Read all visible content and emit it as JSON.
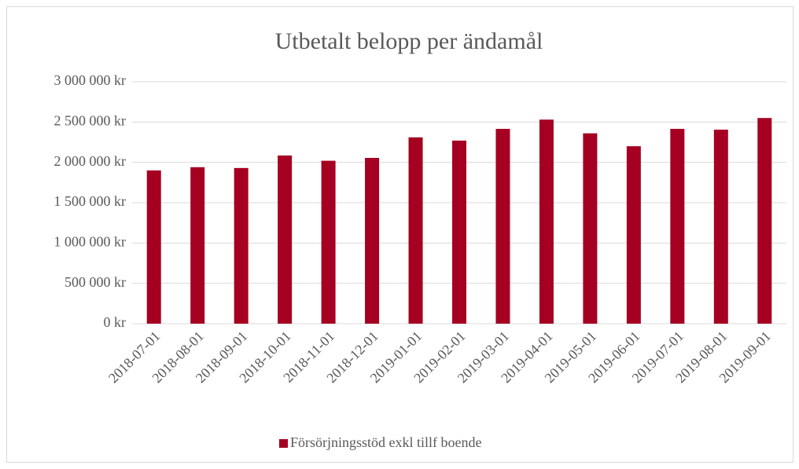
{
  "chart_data": {
    "type": "bar",
    "title": "Utbetalt belopp per ändamål",
    "categories": [
      "2018-07-01",
      "2018-08-01",
      "2018-09-01",
      "2018-10-01",
      "2018-11-01",
      "2018-12-01",
      "2019-01-01",
      "2019-02-01",
      "2019-03-01",
      "2019-04-01",
      "2019-05-01",
      "2019-06-01",
      "2019-07-01",
      "2019-08-01",
      "2019-09-01"
    ],
    "series": [
      {
        "name": "Försörjningsstöd exkl tillf boende",
        "color": "#a50021",
        "values": [
          1900000,
          1940000,
          1930000,
          2085000,
          2020000,
          2055000,
          2310000,
          2270000,
          2415000,
          2530000,
          2360000,
          2200000,
          2415000,
          2405000,
          2550000
        ]
      }
    ],
    "ylim": [
      0,
      3000000
    ],
    "yticks": [
      {
        "value": 0,
        "label": "0 kr"
      },
      {
        "value": 500000,
        "label": "500 000 kr"
      },
      {
        "value": 1000000,
        "label": "1 000 000 kr"
      },
      {
        "value": 1500000,
        "label": "1 500 000 kr"
      },
      {
        "value": 2000000,
        "label": "2 000 000 kr"
      },
      {
        "value": 2500000,
        "label": "2 500 000 kr"
      },
      {
        "value": 3000000,
        "label": "3 000 000 kr"
      }
    ],
    "grid": true,
    "legend": "bottom"
  }
}
